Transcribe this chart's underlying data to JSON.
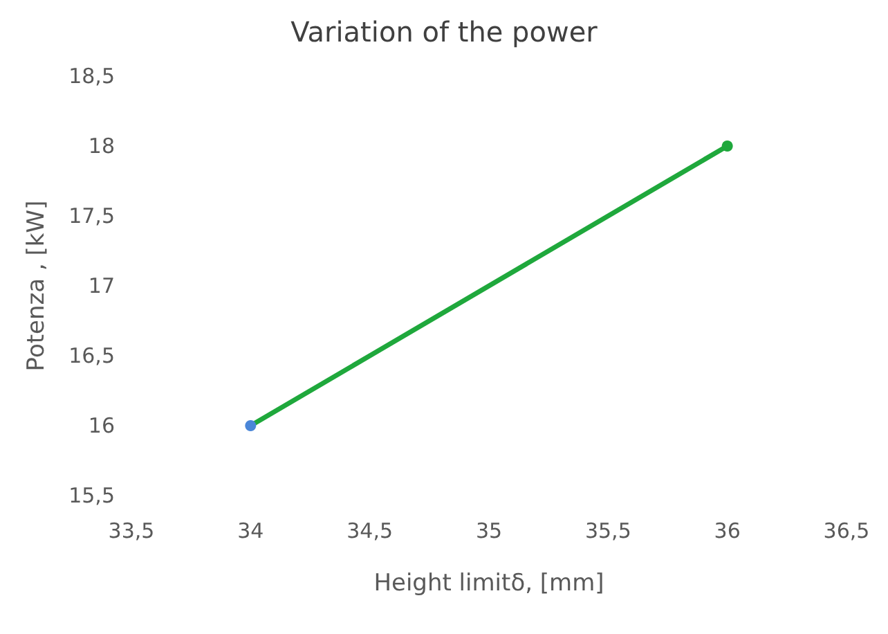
{
  "chart_data": {
    "type": "line",
    "title": "Variation of the power",
    "xlabel": "Height limitδ, [mm]",
    "ylabel": "Potenza , [kW]",
    "x": [
      34,
      36
    ],
    "series": [
      {
        "color": "#1fa83c",
        "colors": [
          "#4a86d8",
          "#1fa83c"
        ],
        "values": [
          16,
          18
        ]
      }
    ],
    "xlim": [
      33.5,
      36.5
    ],
    "xticks": [
      {
        "value": 33.5,
        "label": "33,5"
      },
      34,
      {
        "value": 34.5,
        "label": "34,5"
      },
      35,
      {
        "value": 35.5,
        "label": "35,5"
      },
      36,
      {
        "value": 36.5,
        "label": "36,5"
      }
    ],
    "ylim": [
      15.5,
      18.5
    ],
    "yticks": [
      {
        "value": 15.5,
        "label": "15,5"
      },
      16,
      {
        "value": 16.5,
        "label": "16,5"
      },
      17,
      {
        "value": 17.5,
        "label": "17,5"
      },
      18,
      {
        "value": 18.5,
        "label": "18,5"
      }
    ],
    "grid": false,
    "marker": "circle",
    "line_style": "solid"
  }
}
